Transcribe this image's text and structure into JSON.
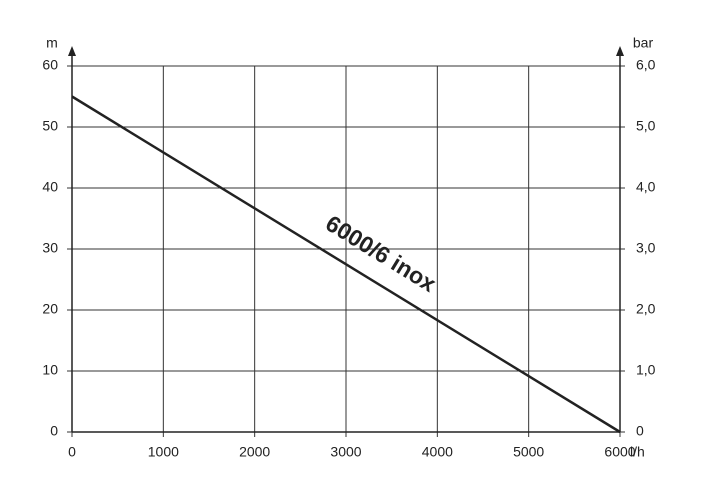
{
  "chart_data": {
    "type": "line",
    "x": [
      0,
      6000
    ],
    "series": [
      {
        "name": "6000/6 inox",
        "color": "#222222",
        "values": [
          55,
          0
        ]
      }
    ],
    "xlim": [
      0,
      6000
    ],
    "xticks": [
      0,
      1000,
      2000,
      3000,
      4000,
      5000,
      6000
    ],
    "ylim": [
      0,
      60
    ],
    "yticks": [
      0,
      10,
      20,
      30,
      40,
      50,
      60
    ],
    "y2lim": [
      0,
      6
    ],
    "y2ticks": [
      0,
      {
        "value": 1,
        "label": "1,0"
      },
      {
        "value": 2,
        "label": "2,0"
      },
      {
        "value": 3,
        "label": "3,0"
      },
      {
        "value": 4,
        "label": "4,0"
      },
      {
        "value": 5,
        "label": "5,0"
      },
      {
        "value": 6,
        "label": "6,0"
      }
    ],
    "y_label": "m",
    "y2_label": "bar",
    "x_label": "l/h",
    "grid": true
  }
}
